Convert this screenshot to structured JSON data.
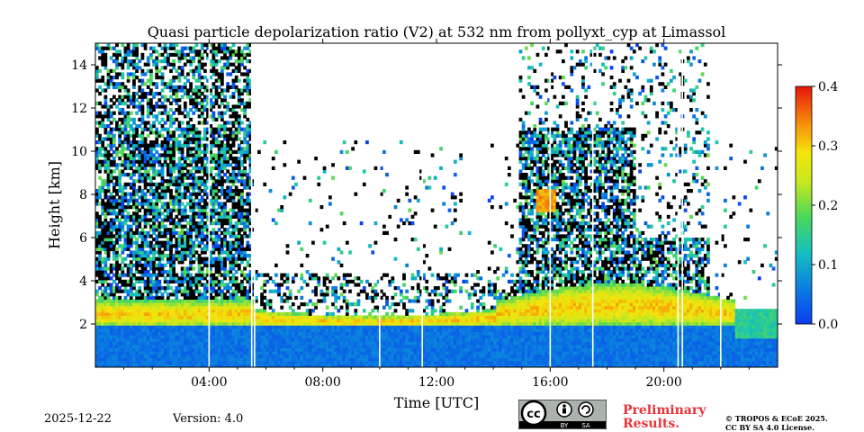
{
  "chart_data": {
    "type": "heatmap",
    "title": "Quasi particle depolarization ratio (V2) at 532 nm from pollyxt_cyp at Limassol",
    "xlabel": "Time [UTC]",
    "ylabel": "Height [km]",
    "x_range_hours": [
      0,
      24
    ],
    "ylim": [
      0,
      15
    ],
    "x_ticks": [
      {
        "hour": 4,
        "label": "04:00"
      },
      {
        "hour": 8,
        "label": "08:00"
      },
      {
        "hour": 12,
        "label": "12:00"
      },
      {
        "hour": 16,
        "label": "16:00"
      },
      {
        "hour": 20,
        "label": "20:00"
      }
    ],
    "y_ticks": [
      {
        "value": 2,
        "label": "2"
      },
      {
        "value": 4,
        "label": "4"
      },
      {
        "value": 6,
        "label": "6"
      },
      {
        "value": 8,
        "label": "8"
      },
      {
        "value": 10,
        "label": "10"
      },
      {
        "value": 12,
        "label": "12"
      },
      {
        "value": 14,
        "label": "14"
      }
    ],
    "colorbar": {
      "min": 0.0,
      "max": 0.4,
      "ticks": [
        {
          "value": 0.0,
          "label": "0.0"
        },
        {
          "value": 0.1,
          "label": "0.1"
        },
        {
          "value": 0.2,
          "label": "0.2"
        },
        {
          "value": 0.3,
          "label": "0.3"
        },
        {
          "value": 0.4,
          "label": "0.4"
        }
      ]
    },
    "data_gaps_hours": [
      4.0,
      5.5,
      5.6,
      10.0,
      11.5,
      16.0,
      17.5,
      20.5,
      20.65,
      22.0
    ],
    "regions": [
      {
        "name": "boundary-layer-low",
        "t_start": 0,
        "t_end": 24,
        "h_bottom": 0,
        "h_top": 1.8,
        "depol": 0.05
      },
      {
        "name": "elevated-aerosol-layer",
        "t_start": 0,
        "t_end": 22.5,
        "h_bottom": 1.8,
        "h_top": 3.0,
        "depol": 0.22
      },
      {
        "name": "morning-cloud-noise",
        "t_start": 0,
        "t_end": 5.4,
        "h_bottom": 3.0,
        "h_top": 14.8,
        "depol": 0.08
      },
      {
        "name": "afternoon-cloud-noise",
        "t_start": 14.8,
        "t_end": 21.6,
        "h_bottom": 3.0,
        "h_top": 14.5,
        "depol": 0.08
      },
      {
        "name": "ice-cloud-patch",
        "t_start": 15.4,
        "t_end": 16.1,
        "h_bottom": 7.2,
        "h_top": 8.2,
        "depol": 0.33
      }
    ]
  },
  "footer": {
    "date": "2025-12-22",
    "version": "Version: 4.0",
    "preliminary_line1": "Preliminary",
    "preliminary_line2": "Results.",
    "copyright_line1": "© TROPOS & ECoE 2025.",
    "copyright_line2": "CC BY SA 4.0 License.",
    "license_badge": {
      "cc": "cc",
      "by": "BY",
      "sa": "SA"
    }
  }
}
